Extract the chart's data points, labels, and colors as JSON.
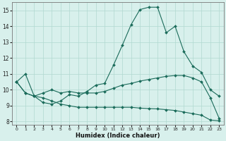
{
  "xlabel": "Humidex (Indice chaleur)",
  "xlim": [
    -0.5,
    23.5
  ],
  "ylim": [
    7.8,
    15.5
  ],
  "yticks": [
    8,
    9,
    10,
    11,
    12,
    13,
    14,
    15
  ],
  "xticks": [
    0,
    1,
    2,
    3,
    4,
    5,
    6,
    7,
    8,
    9,
    10,
    11,
    12,
    13,
    14,
    15,
    16,
    17,
    18,
    19,
    20,
    21,
    22,
    23
  ],
  "bg_color": "#d8f0ec",
  "line_color": "#1a6b5a",
  "grid_color": "#b0d8d0",
  "series": [
    [
      10.5,
      11.0,
      9.6,
      9.2,
      9.1,
      9.3,
      9.7,
      9.6,
      9.9,
      10.3,
      10.4,
      11.55,
      12.8,
      14.1,
      15.05,
      15.2,
      15.2,
      13.6,
      14.0,
      12.4,
      11.5,
      11.1,
      10.0,
      9.6
    ],
    [
      10.5,
      9.8,
      9.6,
      9.8,
      10.0,
      9.8,
      9.9,
      9.8,
      9.8,
      9.8,
      9.9,
      10.1,
      10.3,
      10.4,
      10.55,
      10.65,
      10.75,
      10.85,
      10.9,
      10.9,
      10.75,
      10.5,
      9.5,
      8.2
    ],
    [
      10.5,
      9.8,
      9.6,
      9.5,
      9.3,
      9.1,
      9.0,
      8.9,
      8.9,
      8.9,
      8.9,
      8.9,
      8.9,
      8.9,
      8.85,
      8.82,
      8.8,
      8.75,
      8.7,
      8.6,
      8.5,
      8.4,
      8.1,
      8.05
    ]
  ]
}
